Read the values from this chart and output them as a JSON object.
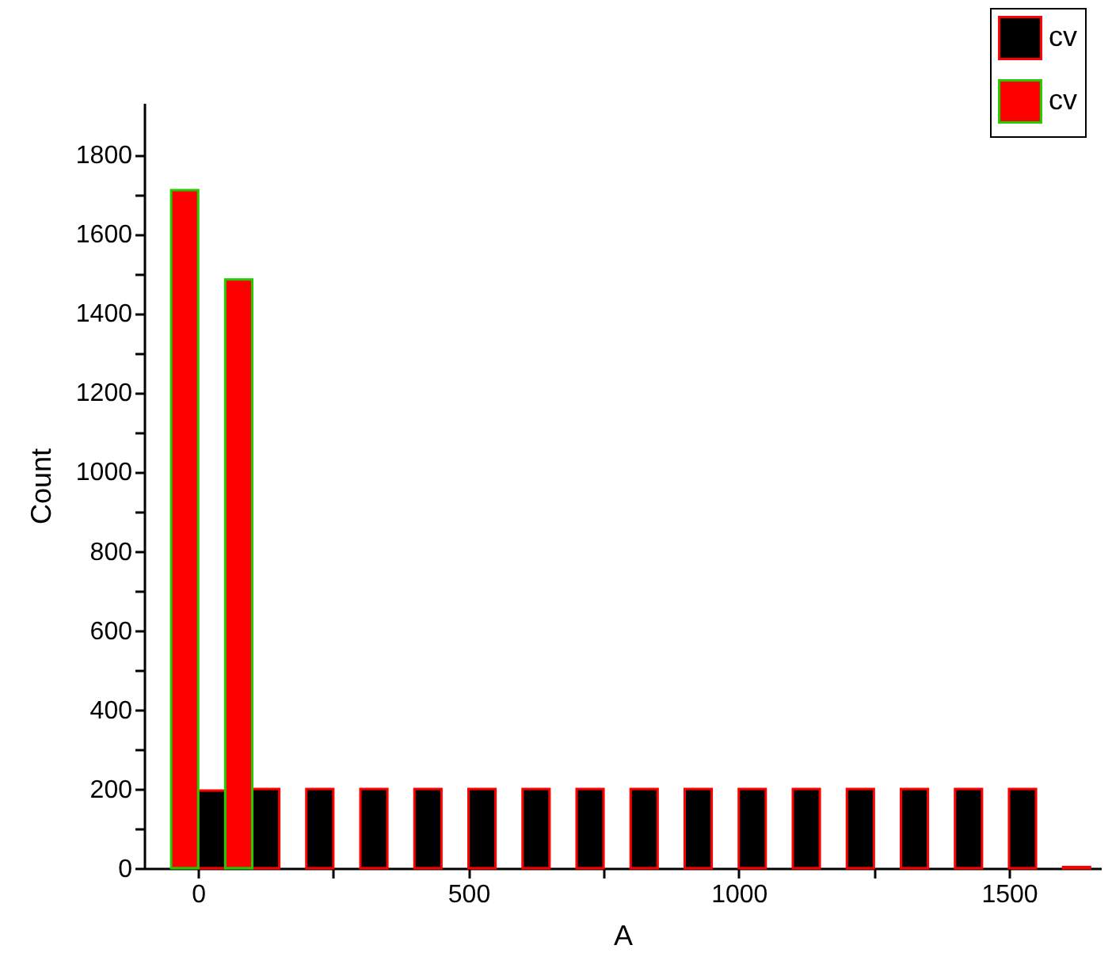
{
  "chart_data": {
    "type": "bar",
    "xlabel": "A",
    "ylabel": "Count",
    "xlim": [
      -100,
      1670
    ],
    "ylim": [
      0,
      1930
    ],
    "xticks": [
      0,
      {
        "value": 250,
        "label": null
      },
      500,
      {
        "value": 750,
        "label": null
      },
      1000,
      {
        "value": 1250,
        "label": null
      },
      1500
    ],
    "yticks": [
      0,
      {
        "value": 100,
        "label": null
      },
      200,
      {
        "value": 300,
        "label": null
      },
      400,
      {
        "value": 500,
        "label": null
      },
      600,
      {
        "value": 700,
        "label": null
      },
      800,
      {
        "value": 900,
        "label": null
      },
      1000,
      {
        "value": 1100,
        "label": null
      },
      1200,
      {
        "value": 1300,
        "label": null
      },
      1400,
      {
        "value": 1500,
        "label": null
      },
      1600,
      {
        "value": 1700,
        "label": null
      },
      1800
    ],
    "grid": false,
    "legend": "top right",
    "series": [
      {
        "name": "cv",
        "color": "#000000",
        "x": [
          25,
          125,
          225,
          325,
          425,
          525,
          625,
          725,
          825,
          925,
          1025,
          1125,
          1225,
          1325,
          1425,
          1525,
          1625
        ],
        "values": [
          196,
          200,
          200,
          200,
          200,
          200,
          200,
          200,
          200,
          200,
          200,
          200,
          200,
          200,
          200,
          200,
          3
        ]
      },
      {
        "name": "cv",
        "color": "#ff0000",
        "x": [
          -25,
          75
        ],
        "values": [
          1710,
          1485
        ]
      }
    ]
  }
}
